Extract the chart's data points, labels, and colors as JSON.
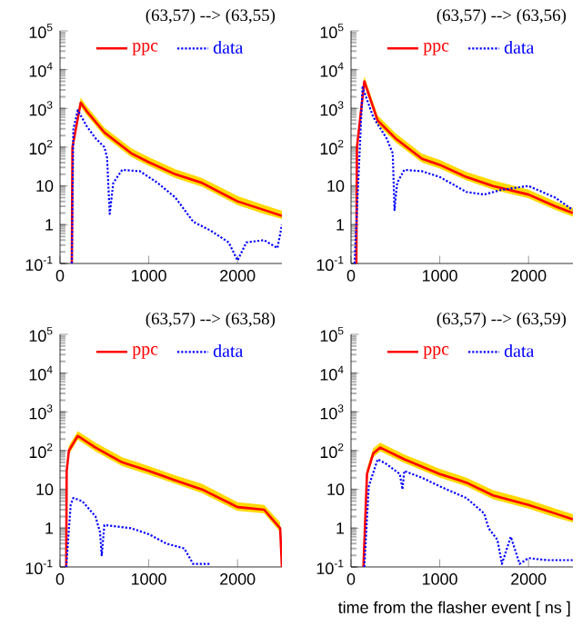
{
  "chart_data": [
    {
      "type": "line",
      "title": "(63,57) --> (63,55)",
      "xlim": [
        0,
        2500
      ],
      "ylim": [
        0.1,
        100000
      ],
      "xticks": [
        0,
        1000,
        2000
      ],
      "yticks": [
        {
          "value": 0.1,
          "label": "10$^{-1}$"
        },
        1,
        10,
        {
          "value": 100,
          "label": "10$^{2}$"
        },
        {
          "value": 1000,
          "label": "10$^{3}$"
        },
        {
          "value": 10000,
          "label": "10$^{4}$"
        },
        {
          "value": 100000,
          "label": "10$^{5}$"
        }
      ],
      "log": "y",
      "legend": "top",
      "series": [
        {
          "name": "ppc",
          "color": "#ff0000",
          "line_style": "solid",
          "x": [
            133,
            140,
            233,
            300,
            500,
            800,
            1000,
            1300,
            1600,
            2000,
            2300,
            2500
          ],
          "values": [
            0.1,
            100,
            1400,
            850,
            240,
            70,
            41,
            20,
            12,
            4,
            2.4,
            1.7
          ],
          "upper": [
            0.1,
            130,
            1900,
            1150,
            320,
            95,
            55,
            27,
            16,
            5.5,
            3.2,
            2.3
          ],
          "lower": [
            0.1,
            80,
            1100,
            680,
            190,
            56,
            33,
            16,
            9.6,
            3.2,
            1.9,
            1.4
          ]
        },
        {
          "name": "data",
          "color": "#0000ff",
          "line_style": "dotted",
          "x": [
            133,
            150,
            200,
            300,
            400,
            500,
            530,
            560,
            600,
            700,
            900,
            1100,
            1300,
            1500,
            1700,
            1900,
            2000,
            2100,
            2300,
            2450,
            2500
          ],
          "values": [
            0.1,
            290,
            900,
            350,
            170,
            100,
            54,
            1.9,
            12,
            26,
            24,
            12,
            5,
            1.2,
            0.7,
            0.35,
            0.12,
            0.35,
            0.4,
            0.25,
            1
          ]
        }
      ]
    },
    {
      "type": "line",
      "title": "(63,57) --> (63,56)",
      "xlim": [
        0,
        2500
      ],
      "ylim": [
        0.1,
        100000
      ],
      "xticks": [
        0,
        1000,
        2000
      ],
      "yticks": [
        {
          "value": 0.1,
          "label": "10$^{-1}$"
        },
        1,
        10,
        {
          "value": 100,
          "label": "10$^{2}$"
        },
        {
          "value": 1000,
          "label": "10$^{3}$"
        },
        {
          "value": 10000,
          "label": "10$^{4}$"
        },
        {
          "value": 100000,
          "label": "10$^{5}$"
        }
      ],
      "log": "y",
      "legend": "top",
      "series": [
        {
          "name": "ppc",
          "color": "#ff0000",
          "line_style": "solid",
          "x": [
            60,
            67,
            150,
            300,
            500,
            800,
            1000,
            1300,
            1600,
            2000,
            2300,
            2500
          ],
          "values": [
            0.1,
            100,
            5000,
            490,
            170,
            50,
            35,
            17,
            10,
            6,
            3,
            2
          ],
          "upper": [
            0.1,
            130,
            6700,
            660,
            230,
            68,
            47,
            23,
            14,
            8,
            4,
            2.7
          ],
          "lower": [
            0.1,
            80,
            4000,
            390,
            135,
            40,
            28,
            14,
            8,
            4.8,
            2.4,
            1.6
          ]
        },
        {
          "name": "data",
          "color": "#0000ff",
          "line_style": "dotted",
          "x": [
            40,
            130,
            250,
            400,
            470,
            490,
            520,
            600,
            800,
            1000,
            1300,
            1500,
            1700,
            2000,
            2300,
            2500
          ],
          "values": [
            0.1,
            3500,
            600,
            170,
            70,
            2.4,
            12,
            26,
            24,
            17,
            7,
            6,
            8,
            10,
            5,
            2.4
          ]
        }
      ]
    },
    {
      "type": "line",
      "title": "(63,57) --> (63,58)",
      "xlim": [
        0,
        2500
      ],
      "ylim": [
        0.1,
        100000
      ],
      "xticks": [
        0,
        1000,
        2000
      ],
      "yticks": [
        {
          "value": 0.1,
          "label": "10$^{-1}$"
        },
        1,
        10,
        {
          "value": 100,
          "label": "10$^{2}$"
        },
        {
          "value": 1000,
          "label": "10$^{3}$"
        },
        {
          "value": 10000,
          "label": "10$^{4}$"
        },
        {
          "value": 100000,
          "label": "10$^{5}$"
        }
      ],
      "log": "y",
      "legend": "top",
      "series": [
        {
          "name": "ppc",
          "color": "#ff0000",
          "line_style": "solid",
          "x": [
            70,
            75,
            100,
            200,
            400,
            700,
            1000,
            1300,
            1600,
            2000,
            2300,
            2480,
            2500
          ],
          "values": [
            0.1,
            30,
            100,
            240,
            120,
            50,
            30,
            17,
            10,
            3.5,
            3,
            1,
            0.1
          ],
          "upper": [
            0.1,
            40,
            135,
            320,
            160,
            68,
            40,
            23,
            14,
            4.7,
            4,
            1.4,
            0.1
          ],
          "lower": [
            0.1,
            24,
            80,
            190,
            96,
            40,
            24,
            14,
            8,
            2.8,
            2.4,
            0.8,
            0.1
          ]
        },
        {
          "name": "data",
          "color": "#0000ff",
          "line_style": "dotted",
          "x": [
            70,
            120,
            150,
            250,
            400,
            450,
            470,
            500,
            800,
            1000,
            1200,
            1400,
            1500,
            1700
          ],
          "values": [
            0.1,
            4,
            6,
            5,
            2,
            0.8,
            0.2,
            1.2,
            1,
            0.7,
            0.4,
            0.3,
            0.12,
            0.12
          ]
        }
      ]
    },
    {
      "type": "line",
      "title": "(63,57) --> (63,59)",
      "xlabel": "time from the flasher event [ ns ]",
      "xlim": [
        0,
        2500
      ],
      "ylim": [
        0.1,
        100000
      ],
      "xticks": [
        0,
        1000,
        2000
      ],
      "yticks": [
        {
          "value": 0.1,
          "label": "10$^{-1}$"
        },
        1,
        10,
        {
          "value": 100,
          "label": "10$^{2}$"
        },
        {
          "value": 1000,
          "label": "10$^{3}$"
        },
        {
          "value": 10000,
          "label": "10$^{4}$"
        },
        {
          "value": 100000,
          "label": "10$^{5}$"
        }
      ],
      "log": "y",
      "legend": "top",
      "series": [
        {
          "name": "ppc",
          "color": "#ff0000",
          "line_style": "solid",
          "x": [
            140,
            180,
            250,
            330,
            600,
            1000,
            1300,
            1600,
            2000,
            2300,
            2500
          ],
          "values": [
            0.1,
            25,
            85,
            120,
            60,
            25,
            15,
            7,
            4,
            2.4,
            1.7
          ],
          "upper": [
            0.1,
            34,
            115,
            160,
            80,
            34,
            20,
            9.5,
            5.4,
            3.2,
            2.3
          ],
          "lower": [
            0.1,
            20,
            68,
            96,
            48,
            20,
            12,
            5.6,
            3.2,
            1.9,
            1.4
          ]
        },
        {
          "name": "data",
          "color": "#0000ff",
          "line_style": "dotted",
          "x": [
            150,
            200,
            300,
            400,
            550,
            580,
            600,
            800,
            1000,
            1300,
            1500,
            1550,
            1650,
            1700,
            1800,
            1900,
            2000,
            2200,
            2500
          ],
          "values": [
            0.1,
            12,
            60,
            45,
            25,
            10,
            30,
            20,
            12,
            6,
            2.4,
            1,
            0.5,
            0.12,
            0.6,
            0.12,
            0.17,
            0.15,
            0.15
          ]
        }
      ]
    }
  ]
}
